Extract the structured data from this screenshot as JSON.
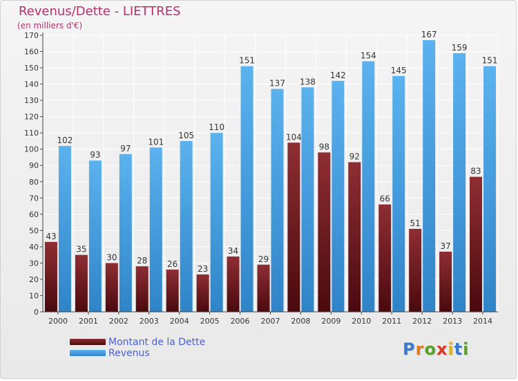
{
  "title": "Revenus/Dette - LIETTRES",
  "subtitle": "(en milliers d'€)",
  "colors": {
    "dette": "#7a1f24",
    "revenus": "#4aa3e4",
    "title": "#b5306d",
    "legend_text": "#4a5fd3"
  },
  "chart_data": {
    "type": "bar",
    "categories": [
      "2000",
      "2001",
      "2002",
      "2003",
      "2004",
      "2005",
      "2006",
      "2007",
      "2008",
      "2009",
      "2010",
      "2011",
      "2012",
      "2013",
      "2014"
    ],
    "series": [
      {
        "name": "Montant de la Dette",
        "values": [
          43,
          35,
          30,
          28,
          26,
          23,
          34,
          29,
          104,
          98,
          92,
          66,
          51,
          37,
          83
        ]
      },
      {
        "name": "Revenus",
        "values": [
          102,
          93,
          97,
          101,
          105,
          110,
          151,
          137,
          138,
          142,
          154,
          145,
          167,
          159,
          151
        ]
      }
    ],
    "ylim": [
      0,
      170
    ],
    "yticks": [
      0,
      10,
      20,
      30,
      40,
      50,
      60,
      70,
      80,
      90,
      100,
      110,
      120,
      130,
      140,
      150,
      160,
      170
    ],
    "grid": true,
    "legend_position": "bottom-left"
  },
  "legend": {
    "items": [
      {
        "label": "Montant de la Dette",
        "color": "#7a1f24"
      },
      {
        "label": "Revenus",
        "color": "#4aa3e4"
      }
    ]
  },
  "logo": {
    "letters": [
      "P",
      "r",
      "o",
      "x",
      "i",
      "t",
      "i"
    ],
    "colors": [
      "#3a7ac8",
      "#e07b22",
      "#5aa02c",
      "#d63a2a",
      "#e0b21e",
      "#3a7ac8",
      "#5aa02c"
    ]
  }
}
